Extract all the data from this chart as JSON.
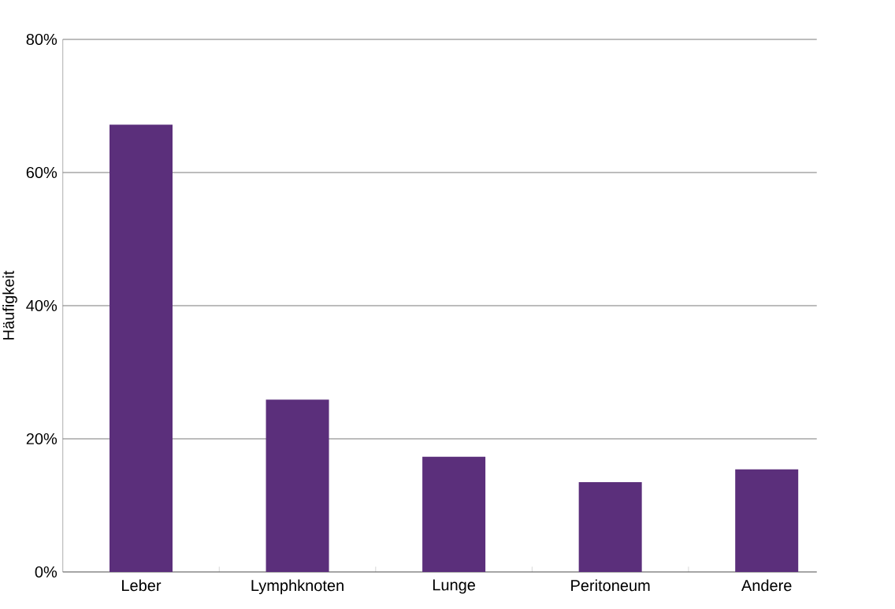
{
  "chart_data": {
    "type": "bar",
    "ylabel": "Häufigkeit",
    "categories": [
      "Leber",
      "Lymphknoten",
      "Lunge",
      "Peritoneum",
      "Andere"
    ],
    "values": [
      67.2,
      25.9,
      17.3,
      13.5,
      15.4
    ],
    "color": "#5b2f7b",
    "ylim": [
      0,
      80
    ],
    "yticks": [
      {
        "value": 0,
        "label": "0%"
      },
      {
        "value": 20,
        "label": "20%"
      },
      {
        "value": 40,
        "label": "40%"
      },
      {
        "value": 60,
        "label": "60%"
      },
      {
        "value": 80,
        "label": "80%"
      }
    ],
    "grid": "y"
  }
}
